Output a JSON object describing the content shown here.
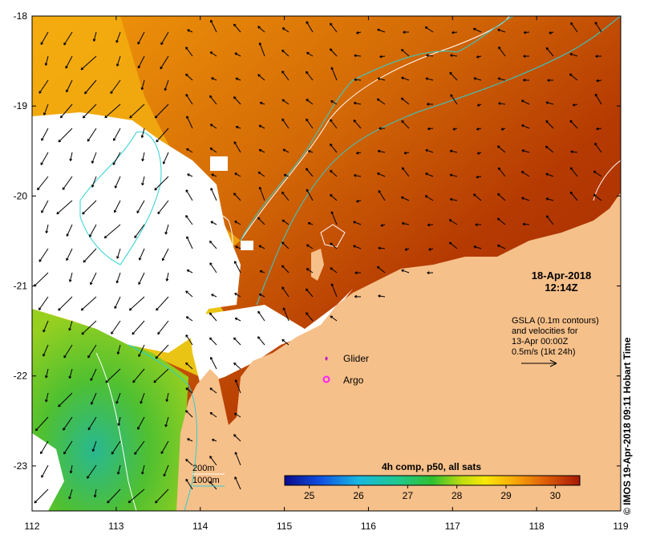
{
  "map": {
    "timestamp_date": "18-Apr-2018",
    "timestamp_time": "12:14Z",
    "gsla_lines": [
      "GSLA (0.1m contours)",
      "and velocities for",
      "13-Apr 00:00Z",
      "0.5m/s (1kt 24h)"
    ],
    "legend": {
      "glider": "Glider",
      "argo": "Argo"
    },
    "isobaths": {
      "shallow": "200m",
      "deep": "1000m"
    },
    "colorbar": {
      "title": "4h comp, p50, all sats",
      "ticks": [
        "25",
        "26",
        "27",
        "28",
        "29",
        "30"
      ],
      "min": 24.5,
      "max": 30.5
    },
    "axes": {
      "lon_ticks": [
        "112",
        "113",
        "114",
        "115",
        "116",
        "117",
        "118",
        "119"
      ],
      "lat_ticks": [
        "-18",
        "-19",
        "-20",
        "-21",
        "-22",
        "-23"
      ],
      "lon_range": [
        112,
        119
      ],
      "lat_range": [
        -23.5,
        -18
      ]
    },
    "credit": "© IMOS 19-Apr-2018 09:11 Hobart Time",
    "colors": {
      "land": "#f6c08a",
      "cloud": "#ffffff",
      "isobath_200": "#ffffff",
      "isobath_1000": "#2ed0d0",
      "arrow": "#000000",
      "glider": "#c020c0",
      "argo": "#ff20ff"
    }
  }
}
